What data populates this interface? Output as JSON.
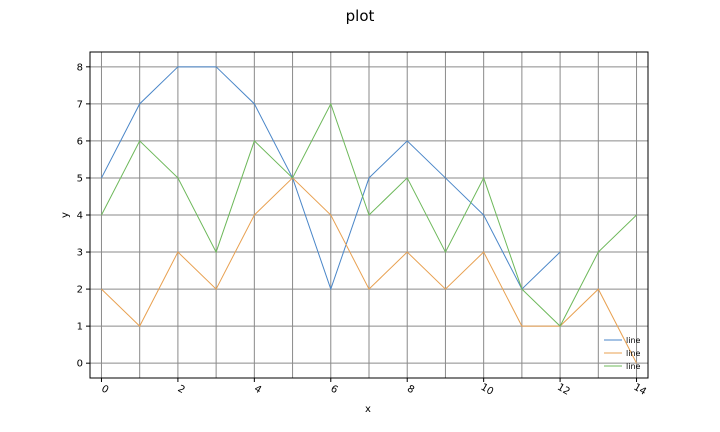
{
  "chart_data": {
    "type": "line",
    "title": "plot",
    "xlabel": "x",
    "ylabel": "y",
    "xlim": [
      -0.3,
      14.3
    ],
    "ylim": [
      -0.4,
      8.4
    ],
    "xticks": [
      0,
      2,
      4,
      6,
      8,
      10,
      12,
      14
    ],
    "yticks": [
      0,
      1,
      2,
      3,
      4,
      5,
      6,
      7,
      8
    ],
    "grid": true,
    "legend_position": "bottom-right",
    "series": [
      {
        "name": "line",
        "color": "#4a86c8",
        "x": [
          0,
          1,
          2,
          3,
          4,
          5,
          6,
          7,
          8,
          9,
          10,
          11,
          12
        ],
        "y": [
          5,
          7,
          8,
          8,
          7,
          5,
          2,
          5,
          6,
          5,
          4,
          2,
          3
        ]
      },
      {
        "name": "line",
        "color": "#e8a050",
        "x": [
          0,
          1,
          2,
          3,
          4,
          5,
          6,
          7,
          8,
          9,
          10,
          11,
          12,
          13,
          14
        ],
        "y": [
          2,
          1,
          3,
          2,
          4,
          5,
          4,
          2,
          3,
          2,
          3,
          1,
          1,
          2,
          0
        ]
      },
      {
        "name": "line",
        "color": "#6db85a",
        "x": [
          0,
          1,
          2,
          3,
          4,
          5,
          6,
          7,
          8,
          9,
          10,
          11,
          12,
          13,
          14
        ],
        "y": [
          4,
          6,
          5,
          3,
          6,
          5,
          7,
          4,
          5,
          3,
          5,
          2,
          1,
          3,
          4
        ]
      }
    ]
  }
}
